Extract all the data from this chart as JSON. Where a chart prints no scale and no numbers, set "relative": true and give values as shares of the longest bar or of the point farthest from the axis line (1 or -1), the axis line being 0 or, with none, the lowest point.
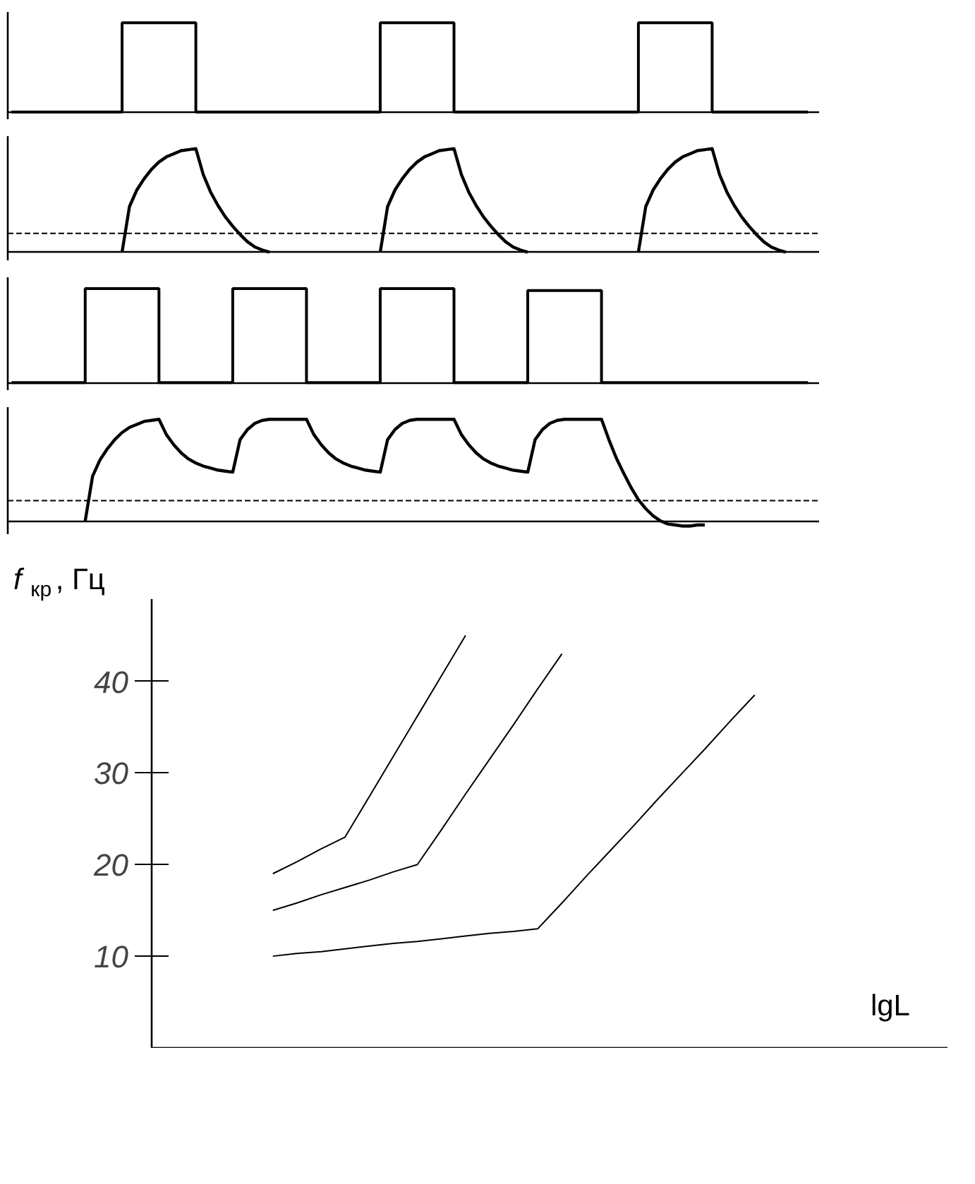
{
  "chart_data": [
    {
      "type": "step",
      "relative": true,
      "tick_labels": false,
      "categories": [
        null,
        null,
        null,
        null,
        null,
        null,
        null,
        null,
        null,
        null,
        null,
        null,
        null,
        null,
        null,
        null,
        null,
        null,
        null,
        null,
        null,
        null,
        null,
        null,
        null,
        null,
        null,
        null,
        null,
        null,
        null,
        null,
        null,
        null,
        null,
        null,
        null,
        null,
        null,
        null,
        null,
        null,
        null,
        null,
        null,
        null,
        null,
        null,
        null,
        null,
        null,
        null,
        null,
        null,
        null,
        null,
        null,
        null,
        null,
        null,
        null,
        null,
        null,
        null,
        null,
        null,
        null,
        null,
        null,
        null,
        null,
        null,
        null,
        null,
        null,
        null,
        null,
        null,
        null,
        null,
        null,
        null,
        null,
        null,
        null,
        null,
        null,
        null,
        null,
        null,
        null,
        null,
        null,
        null,
        null,
        null,
        null,
        null,
        null,
        null,
        null,
        null,
        null,
        null,
        null,
        null,
        null,
        null,
        null
      ],
      "series": [
        {
          "color": "#000000",
          "values": [
            0,
            0,
            0,
            0,
            0,
            0,
            0,
            0,
            0,
            0,
            0,
            0,
            0,
            0,
            0,
            1,
            1,
            1,
            1,
            1,
            1,
            1,
            1,
            1,
            1,
            0,
            0,
            0,
            0,
            0,
            0,
            0,
            0,
            0,
            0,
            0,
            0,
            0,
            0,
            0,
            0,
            0,
            0,
            0,
            0,
            0,
            0,
            0,
            0,
            0,
            1,
            1,
            1,
            1,
            1,
            1,
            1,
            1,
            1,
            1,
            0,
            0,
            0,
            0,
            0,
            0,
            0,
            0,
            0,
            0,
            0,
            0,
            0,
            0,
            0,
            0,
            0,
            0,
            0,
            0,
            0,
            0,
            0,
            0,
            0,
            1,
            1,
            1,
            1,
            1,
            1,
            1,
            1,
            1,
            1,
            0,
            0,
            0,
            0,
            0,
            0,
            0,
            0,
            0,
            0,
            0,
            0,
            0,
            0
          ]
        }
      ]
    },
    {
      "type": "line",
      "relative": true,
      "tick_labels": false,
      "categories": [
        null,
        null,
        null,
        null,
        null,
        null,
        null,
        null,
        null,
        null,
        null,
        null,
        null,
        null,
        null,
        null,
        null,
        null,
        null,
        null,
        null,
        null,
        null,
        null,
        null,
        null,
        null,
        null,
        null,
        null,
        null,
        null,
        null,
        null,
        null,
        null,
        null,
        null,
        null,
        null,
        null,
        null,
        null,
        null,
        null,
        null,
        null,
        null,
        null,
        null,
        null,
        null,
        null,
        null,
        null,
        null,
        null,
        null,
        null,
        null,
        null,
        null,
        null,
        null,
        null,
        null,
        null,
        null,
        null,
        null,
        null,
        null,
        null,
        null,
        null,
        null,
        null,
        null,
        null,
        null,
        null,
        null,
        null,
        null,
        null,
        null,
        null,
        null,
        null,
        null,
        null,
        null,
        null,
        null,
        null,
        null,
        null,
        null,
        null,
        null,
        null,
        null,
        null,
        null,
        null,
        null,
        null,
        null,
        null
      ],
      "ref_lines": [
        {
          "axis": "y",
          "value": 0.18,
          "line_style": "dashed",
          "color": "#000000"
        }
      ],
      "series": [
        {
          "color": "#000000",
          "values": [
            null,
            null,
            null,
            null,
            null,
            null,
            null,
            null,
            null,
            null,
            null,
            null,
            null,
            null,
            null,
            0,
            0.44,
            0.6,
            0.71,
            0.8,
            0.87,
            0.92,
            0.95,
            0.98,
            0.99,
            1,
            0.75,
            0.58,
            0.45,
            0.34,
            0.25,
            0.17,
            0.1,
            0.05,
            0.02,
            0,
            null,
            null,
            null,
            null,
            null,
            null,
            null,
            null,
            null,
            null,
            null,
            null,
            null,
            null,
            0,
            0.44,
            0.6,
            0.71,
            0.8,
            0.87,
            0.92,
            0.95,
            0.98,
            0.99,
            1,
            0.75,
            0.58,
            0.45,
            0.34,
            0.25,
            0.17,
            0.1,
            0.05,
            0.02,
            0,
            null,
            null,
            null,
            null,
            null,
            null,
            null,
            null,
            null,
            null,
            null,
            null,
            null,
            null,
            0,
            0.44,
            0.6,
            0.71,
            0.8,
            0.87,
            0.92,
            0.95,
            0.98,
            0.99,
            1,
            0.75,
            0.58,
            0.45,
            0.34,
            0.25,
            0.17,
            0.1,
            0.05,
            0.02,
            0,
            null,
            null,
            null
          ]
        }
      ]
    },
    {
      "type": "step",
      "relative": true,
      "tick_labels": false,
      "categories": [
        null,
        null,
        null,
        null,
        null,
        null,
        null,
        null,
        null,
        null,
        null,
        null,
        null,
        null,
        null,
        null,
        null,
        null,
        null,
        null,
        null,
        null,
        null,
        null,
        null,
        null,
        null,
        null,
        null,
        null,
        null,
        null,
        null,
        null,
        null,
        null,
        null,
        null,
        null,
        null,
        null,
        null,
        null,
        null,
        null,
        null,
        null,
        null,
        null,
        null,
        null,
        null,
        null,
        null,
        null,
        null,
        null,
        null,
        null,
        null,
        null,
        null,
        null,
        null,
        null,
        null,
        null,
        null,
        null,
        null,
        null,
        null,
        null,
        null,
        null,
        null,
        null,
        null,
        null,
        null,
        null,
        null,
        null,
        null,
        null,
        null,
        null,
        null,
        null,
        null,
        null,
        null,
        null,
        null,
        null,
        null,
        null,
        null,
        null,
        null,
        null,
        null,
        null,
        null,
        null,
        null,
        null,
        null,
        null
      ],
      "series": [
        {
          "color": "#000000",
          "values": [
            0,
            0,
            0,
            0,
            0,
            0,
            0,
            0,
            0,
            0,
            1,
            1,
            1,
            1,
            1,
            1,
            1,
            1,
            1,
            1,
            0,
            0,
            0,
            0,
            0,
            0,
            0,
            0,
            0,
            0,
            1,
            1,
            1,
            1,
            1,
            1,
            1,
            1,
            1,
            1,
            0,
            0,
            0,
            0,
            0,
            0,
            0,
            0,
            0,
            0,
            1,
            1,
            1,
            1,
            1,
            1,
            1,
            1,
            1,
            1,
            0,
            0,
            0,
            0,
            0,
            0,
            0,
            0,
            0,
            0,
            0.98,
            0.98,
            0.98,
            0.98,
            0.98,
            0.98,
            0.98,
            0.98,
            0.98,
            0.98,
            0,
            0,
            0,
            0,
            0,
            0,
            0,
            0,
            0,
            0,
            0,
            0,
            0,
            0,
            0,
            0,
            0,
            0,
            0,
            0,
            0,
            0,
            0,
            0,
            0,
            0,
            0,
            0,
            0
          ]
        }
      ]
    },
    {
      "type": "line",
      "relative": true,
      "tick_labels": false,
      "categories": [
        null,
        null,
        null,
        null,
        null,
        null,
        null,
        null,
        null,
        null,
        null,
        null,
        null,
        null,
        null,
        null,
        null,
        null,
        null,
        null,
        null,
        null,
        null,
        null,
        null,
        null,
        null,
        null,
        null,
        null,
        null,
        null,
        null,
        null,
        null,
        null,
        null,
        null,
        null,
        null,
        null,
        null,
        null,
        null,
        null,
        null,
        null,
        null,
        null,
        null,
        null,
        null,
        null,
        null,
        null,
        null,
        null,
        null,
        null,
        null,
        null,
        null,
        null,
        null,
        null,
        null,
        null,
        null,
        null,
        null,
        null,
        null,
        null,
        null,
        null,
        null,
        null,
        null,
        null,
        null,
        null,
        null,
        null,
        null,
        null,
        null,
        null,
        null,
        null,
        null,
        null,
        null,
        null,
        null,
        null,
        null,
        null,
        null,
        null,
        null,
        null,
        null,
        null,
        null,
        null,
        null,
        null,
        null,
        null
      ],
      "ref_lines": [
        {
          "axis": "y",
          "value": 0.2,
          "line_style": "dashed",
          "color": "#000000"
        }
      ],
      "series": [
        {
          "color": "#000000",
          "values": [
            null,
            null,
            null,
            null,
            null,
            null,
            null,
            null,
            null,
            null,
            0,
            0.44,
            0.6,
            0.71,
            0.8,
            0.87,
            0.92,
            0.95,
            0.98,
            0.99,
            1,
            0.85,
            0.75,
            0.67,
            0.61,
            0.57,
            0.54,
            0.52,
            0.5,
            0.49,
            0.48,
            0.8,
            0.9,
            0.96,
            0.99,
            1,
            1,
            1,
            1,
            1,
            1,
            0.85,
            0.75,
            0.67,
            0.61,
            0.57,
            0.54,
            0.52,
            0.5,
            0.49,
            0.48,
            0.8,
            0.9,
            0.96,
            0.99,
            1,
            1,
            1,
            1,
            1,
            1,
            0.85,
            0.75,
            0.67,
            0.61,
            0.57,
            0.54,
            0.52,
            0.5,
            0.49,
            0.48,
            0.8,
            0.9,
            0.96,
            0.99,
            1,
            1,
            1,
            1,
            1,
            1,
            0.8,
            0.62,
            0.47,
            0.33,
            0.21,
            0.12,
            0.05,
            0,
            -0.03,
            -0.04,
            -0.05,
            -0.05,
            -0.04,
            -0.04,
            null,
            null,
            null,
            null,
            null,
            null,
            null,
            null,
            null,
            null,
            null,
            null,
            null,
            null
          ]
        }
      ]
    },
    {
      "type": "line",
      "tick_labels": "y",
      "ylabel": "f$_{кр}$, Гц",
      "xlabel": "lgL",
      "ylim": [
        0,
        49
      ],
      "yticks": [
        10,
        20,
        30,
        40
      ],
      "categories": [
        null,
        null,
        null,
        null,
        null,
        null,
        null,
        null,
        null,
        null,
        null,
        null,
        null,
        null,
        null,
        null,
        null,
        null,
        null,
        null,
        null
      ],
      "series": [
        {
          "color": "#000000",
          "values": [
            19,
            20.3,
            21.7,
            23,
            27.4,
            31.8,
            36.2,
            40.6,
            45,
            null,
            null,
            null,
            null,
            null,
            null,
            null,
            null,
            null,
            null,
            null,
            null
          ]
        },
        {
          "color": "#000000",
          "values": [
            15,
            15.8,
            16.7,
            17.5,
            18.3,
            19.2,
            20,
            23.8,
            27.7,
            31.5,
            35.3,
            39.2,
            43,
            null,
            null,
            null,
            null,
            null,
            null,
            null,
            null
          ]
        },
        {
          "color": "#000000",
          "values": [
            10,
            10.3,
            10.5,
            10.8,
            11.1,
            11.4,
            11.6,
            11.9,
            12.2,
            12.5,
            12.7,
            13,
            15.8,
            18.7,
            21.5,
            24.3,
            27.2,
            30,
            32.8,
            35.7,
            38.5
          ]
        }
      ]
    }
  ]
}
